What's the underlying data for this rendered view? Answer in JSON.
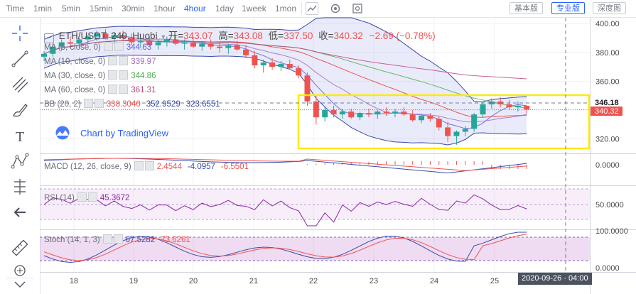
{
  "toolbar": {
    "intervals": [
      "Time",
      "1min",
      "5min",
      "15min",
      "30min",
      "1hour",
      "4hour",
      "1day",
      "1week",
      "1mon"
    ],
    "active_interval": "4hour",
    "version_buttons": [
      "基本版",
      "专业版",
      "深度图"
    ],
    "active_version": "专业版"
  },
  "tools": [
    "crosshair-icon",
    "trend-line-icon",
    "fib-icon",
    "brush-icon",
    "text-icon",
    "pattern-icon",
    "measure-icon",
    "back-arrow-icon",
    "ruler-icon",
    "zoom-in-icon"
  ],
  "header": {
    "symbol": "ETH/USDT, 240, Huobi",
    "open_label": "开=",
    "open": "343.07",
    "high_label": "高=",
    "high": "343.08",
    "low_label": "低=",
    "low": "337.50",
    "close_label": "收=",
    "close": "340.32",
    "change": "−2.69 (−0.78%)"
  },
  "indicators": {
    "ma5": {
      "label": "MA (5, close, 0)",
      "value": "344.63"
    },
    "ma10": {
      "label": "MA (10, close, 0)",
      "value": "339.97"
    },
    "ma30": {
      "label": "MA (30, close, 0)",
      "value": "344.86"
    },
    "ma60": {
      "label": "MA (60, close, 0)",
      "value": "361.31"
    },
    "bb": {
      "label": "BB (20, 2)",
      "v1": "338.3040",
      "v2": "352.9529",
      "v3": "323.6551"
    },
    "macd": {
      "label": "MACD (12, 26, close, 9)",
      "v1": "2.4544",
      "v2": "-4.0957",
      "v3": "-6.5501"
    },
    "rsi": {
      "label": "RSI (14)",
      "value": "45.3672"
    },
    "stoch": {
      "label": "Stoch (14, 1, 3)",
      "v1": "67.5282",
      "v2": "73.6261"
    }
  },
  "watermark": "Chart by TradingView",
  "crosshair_date": "2020-09-26 · 04:00",
  "price_tags": {
    "crosshair": "346.18",
    "last": "340.32"
  },
  "colors": {
    "up": "#26a69a",
    "down": "#ef5350",
    "bb": "#5b64d8",
    "highlight": "#ffeb00",
    "accent": "#2962ff"
  },
  "chart_data": {
    "type": "candlestick",
    "x_tick_labels": [
      "18",
      "19",
      "20",
      "21",
      "22",
      "23",
      "24",
      "25"
    ],
    "y_ticks": [
      320,
      340,
      360,
      380,
      400
    ],
    "ylim": [
      310,
      404
    ],
    "ohlc": [
      [
        377,
        381,
        374,
        379
      ],
      [
        379,
        386,
        377,
        384
      ],
      [
        384,
        389,
        381,
        387
      ],
      [
        387,
        391,
        384,
        386
      ],
      [
        386,
        390,
        383,
        389
      ],
      [
        389,
        392,
        386,
        391
      ],
      [
        391,
        395,
        388,
        393
      ],
      [
        393,
        396,
        389,
        390
      ],
      [
        390,
        394,
        386,
        392
      ],
      [
        392,
        395,
        388,
        390
      ],
      [
        390,
        393,
        385,
        387
      ],
      [
        387,
        390,
        383,
        388
      ],
      [
        388,
        391,
        384,
        385
      ],
      [
        385,
        389,
        382,
        387
      ],
      [
        387,
        391,
        384,
        389
      ],
      [
        389,
        392,
        385,
        386
      ],
      [
        386,
        389,
        382,
        387
      ],
      [
        387,
        390,
        383,
        384
      ],
      [
        384,
        388,
        381,
        386
      ],
      [
        386,
        389,
        382,
        384
      ],
      [
        384,
        387,
        380,
        383
      ],
      [
        383,
        386,
        379,
        385
      ],
      [
        385,
        388,
        381,
        382
      ],
      [
        382,
        385,
        376,
        378
      ],
      [
        378,
        381,
        369,
        371
      ],
      [
        371,
        375,
        366,
        373
      ],
      [
        373,
        376,
        368,
        370
      ],
      [
        370,
        374,
        367,
        372
      ],
      [
        372,
        375,
        368,
        369
      ],
      [
        369,
        371,
        362,
        364
      ],
      [
        364,
        366,
        343,
        346
      ],
      [
        346,
        350,
        330,
        335
      ],
      [
        335,
        342,
        332,
        340
      ],
      [
        340,
        343,
        335,
        337
      ],
      [
        337,
        341,
        334,
        339
      ],
      [
        339,
        341,
        334,
        335
      ],
      [
        335,
        339,
        333,
        338
      ],
      [
        338,
        341,
        335,
        337
      ],
      [
        337,
        340,
        334,
        339
      ],
      [
        339,
        342,
        336,
        338
      ],
      [
        338,
        341,
        335,
        339
      ],
      [
        339,
        342,
        336,
        337
      ],
      [
        337,
        340,
        332,
        333
      ],
      [
        333,
        337,
        331,
        336
      ],
      [
        336,
        338,
        332,
        334
      ],
      [
        334,
        336,
        326,
        328
      ],
      [
        328,
        332,
        318,
        322
      ],
      [
        322,
        326,
        316,
        325
      ],
      [
        325,
        329,
        322,
        327
      ],
      [
        327,
        338,
        325,
        337
      ],
      [
        337,
        346,
        335,
        344
      ],
      [
        344,
        348,
        341,
        346
      ],
      [
        346,
        349,
        342,
        344
      ],
      [
        344,
        347,
        340,
        342
      ],
      [
        342,
        346,
        339,
        343
      ],
      [
        343,
        343.08,
        337.5,
        340.32
      ]
    ],
    "macd_levels": [
      "0.0000"
    ],
    "rsi_levels": [
      "50.0000"
    ],
    "stoch_levels": [
      "100.0000",
      "0.0000"
    ]
  }
}
